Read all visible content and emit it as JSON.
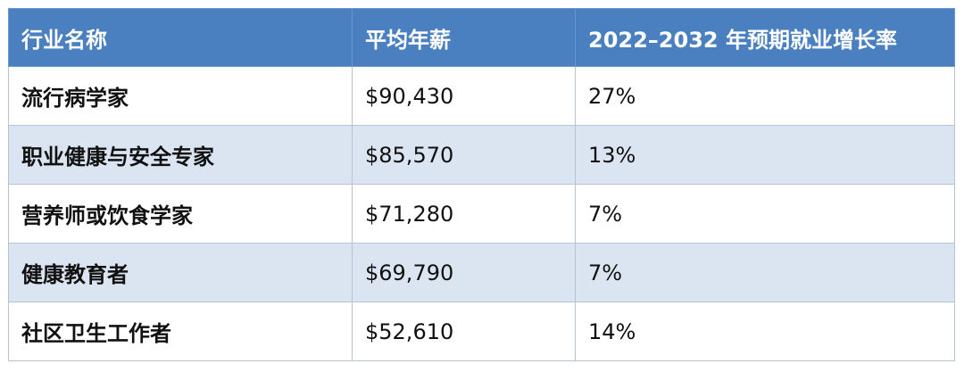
{
  "table": {
    "headers": [
      "行业名称",
      "平均年薪",
      "2022–2032 年预期就业增长率"
    ],
    "rows": [
      {
        "name": "流行病学家",
        "salary": "$90,430",
        "growth": "27%"
      },
      {
        "name": "职业健康与安全专家",
        "salary": "$85,570",
        "growth": "13%"
      },
      {
        "name": "营养师或饮食学家",
        "salary": "$71,280",
        "growth": "7%"
      },
      {
        "name": "健康教育者",
        "salary": "$69,790",
        "growth": "7%"
      },
      {
        "name": "社区卫生工作者",
        "salary": "$52,610",
        "growth": "14%"
      }
    ]
  },
  "colors": {
    "header_bg": "#4a7fc0",
    "header_text": "#ffffff",
    "row_alt_bg": "#dbe4f1",
    "row_bg": "#ffffff",
    "border": "#b7c3d6"
  }
}
